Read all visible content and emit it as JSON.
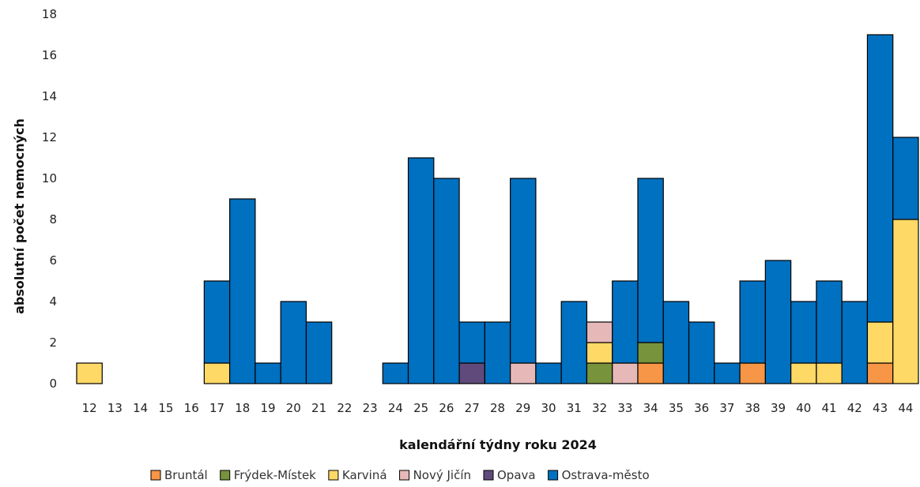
{
  "chart_data": {
    "type": "bar",
    "stacked": true,
    "xlabel": "kalendářní týdny roku 2024",
    "ylabel": "absolutní počet nemocných",
    "ylim": [
      0,
      18
    ],
    "yticks": [
      0,
      2,
      4,
      6,
      8,
      10,
      12,
      14,
      16,
      18
    ],
    "grid": false,
    "legend_position": "bottom",
    "categories": [
      "12",
      "13",
      "14",
      "15",
      "16",
      "17",
      "18",
      "19",
      "20",
      "21",
      "22",
      "23",
      "24",
      "25",
      "26",
      "27",
      "28",
      "29",
      "30",
      "31",
      "32",
      "33",
      "34",
      "35",
      "36",
      "37",
      "38",
      "39",
      "40",
      "41",
      "42",
      "43",
      "44"
    ],
    "series": [
      {
        "name": "Bruntál",
        "color": "#F79646",
        "values": [
          0,
          0,
          0,
          0,
          0,
          0,
          0,
          0,
          0,
          0,
          0,
          0,
          0,
          0,
          0,
          0,
          0,
          0,
          0,
          0,
          0,
          0,
          1,
          0,
          0,
          0,
          1,
          0,
          0,
          0,
          0,
          1,
          0
        ]
      },
      {
        "name": "Frýdek-Místek",
        "color": "#77933C",
        "values": [
          0,
          0,
          0,
          0,
          0,
          0,
          0,
          0,
          0,
          0,
          0,
          0,
          0,
          0,
          0,
          0,
          0,
          0,
          0,
          0,
          1,
          0,
          1,
          0,
          0,
          0,
          0,
          0,
          0,
          0,
          0,
          0,
          0
        ]
      },
      {
        "name": "Karviná",
        "color": "#FFD966",
        "values": [
          1,
          0,
          0,
          0,
          0,
          1,
          0,
          0,
          0,
          0,
          0,
          0,
          0,
          0,
          0,
          0,
          0,
          0,
          0,
          0,
          1,
          0,
          0,
          0,
          0,
          0,
          0,
          0,
          1,
          1,
          0,
          2,
          8
        ]
      },
      {
        "name": "Nový Jičín",
        "color": "#E6B9B8",
        "values": [
          0,
          0,
          0,
          0,
          0,
          0,
          0,
          0,
          0,
          0,
          0,
          0,
          0,
          0,
          0,
          0,
          0,
          1,
          0,
          0,
          1,
          1,
          0,
          0,
          0,
          0,
          0,
          0,
          0,
          0,
          0,
          0,
          0
        ]
      },
      {
        "name": "Opava",
        "color": "#604A7B",
        "values": [
          0,
          0,
          0,
          0,
          0,
          0,
          0,
          0,
          0,
          0,
          0,
          0,
          0,
          0,
          0,
          1,
          0,
          0,
          0,
          0,
          0,
          0,
          0,
          0,
          0,
          0,
          0,
          0,
          0,
          0,
          0,
          0,
          0
        ]
      },
      {
        "name": "Ostrava-město",
        "color": "#0070C0",
        "values": [
          0,
          0,
          0,
          0,
          0,
          4,
          9,
          1,
          4,
          3,
          0,
          0,
          1,
          11,
          10,
          2,
          3,
          9,
          1,
          4,
          0,
          4,
          8,
          4,
          3,
          1,
          4,
          6,
          3,
          4,
          4,
          14,
          4
        ]
      }
    ]
  }
}
